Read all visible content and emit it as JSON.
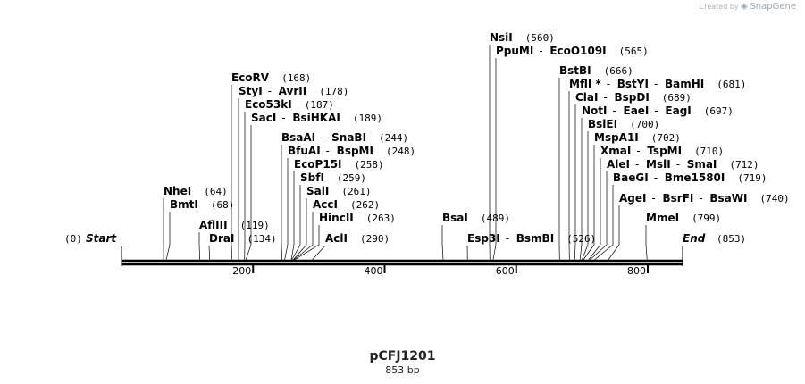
{
  "watermark": {
    "prefix": "Created by",
    "brand": "SnapGene"
  },
  "plasmid": {
    "name": "pCFJ1201",
    "length_label": "853 bp",
    "length_bp": 853
  },
  "ends": {
    "start": {
      "label": "Start",
      "position": "(0)"
    },
    "end": {
      "label": "End",
      "position": "(853)"
    }
  },
  "axis_ticks": [
    "200",
    "400",
    "600",
    "800"
  ],
  "sites": [
    {
      "names": [
        "NsiI"
      ],
      "pos": "(560)",
      "bp": 560
    },
    {
      "names": [
        "PpuMI",
        "EcoO109I"
      ],
      "pos": "(565)",
      "bp": 565
    },
    {
      "names": [
        "BstBI"
      ],
      "pos": "(666)",
      "bp": 666
    },
    {
      "names": [
        "MflI *",
        "BstYI",
        "BamHI"
      ],
      "pos": "(681)",
      "bp": 681
    },
    {
      "names": [
        "ClaI",
        "BspDI"
      ],
      "pos": "(689)",
      "bp": 689
    },
    {
      "names": [
        "NotI",
        "EaeI",
        "EagI"
      ],
      "pos": "(697)",
      "bp": 697
    },
    {
      "names": [
        "BsiEI"
      ],
      "pos": "(700)",
      "bp": 700
    },
    {
      "names": [
        "MspA1I"
      ],
      "pos": "(702)",
      "bp": 702
    },
    {
      "names": [
        "XmaI",
        "TspMI"
      ],
      "pos": "(710)",
      "bp": 710
    },
    {
      "names": [
        "AleI",
        "MslI",
        "SmaI"
      ],
      "pos": "(712)",
      "bp": 712
    },
    {
      "names": [
        "BaeGI",
        "Bme1580I"
      ],
      "pos": "(719)",
      "bp": 719
    },
    {
      "names": [
        "AgeI",
        "BsrFI",
        "BsaWI"
      ],
      "pos": "(740)",
      "bp": 740
    },
    {
      "names": [
        "MmeI"
      ],
      "pos": "(799)",
      "bp": 799
    },
    {
      "names": [
        "EcoRV"
      ],
      "pos": "(168)",
      "bp": 168
    },
    {
      "names": [
        "StyI",
        "AvrII"
      ],
      "pos": "(178)",
      "bp": 178
    },
    {
      "names": [
        "Eco53kI"
      ],
      "pos": "(187)",
      "bp": 187
    },
    {
      "names": [
        "SacI",
        "BsiHKAI"
      ],
      "pos": "(189)",
      "bp": 189
    },
    {
      "names": [
        "BsaAI",
        "SnaBI"
      ],
      "pos": "(244)",
      "bp": 244
    },
    {
      "names": [
        "BfuAI",
        "BspMI"
      ],
      "pos": "(248)",
      "bp": 248
    },
    {
      "names": [
        "EcoP15I"
      ],
      "pos": "(258)",
      "bp": 258
    },
    {
      "names": [
        "SbfI"
      ],
      "pos": "(259)",
      "bp": 259
    },
    {
      "names": [
        "SalI"
      ],
      "pos": "(261)",
      "bp": 261
    },
    {
      "names": [
        "AccI"
      ],
      "pos": "(262)",
      "bp": 262
    },
    {
      "names": [
        "HincII"
      ],
      "pos": "(263)",
      "bp": 263
    },
    {
      "names": [
        "AclI"
      ],
      "pos": "(290)",
      "bp": 290
    },
    {
      "names": [
        "NheI"
      ],
      "pos": "(64)",
      "bp": 64
    },
    {
      "names": [
        "BmtI"
      ],
      "pos": "(68)",
      "bp": 68
    },
    {
      "names": [
        "AflIII"
      ],
      "pos": "(119)",
      "bp": 119
    },
    {
      "names": [
        "DraI"
      ],
      "pos": "(134)",
      "bp": 134
    },
    {
      "names": [
        "BsaI"
      ],
      "pos": "(489)",
      "bp": 489
    },
    {
      "names": [
        "Esp3I",
        "BsmBI"
      ],
      "pos": "(526)",
      "bp": 526
    }
  ]
}
